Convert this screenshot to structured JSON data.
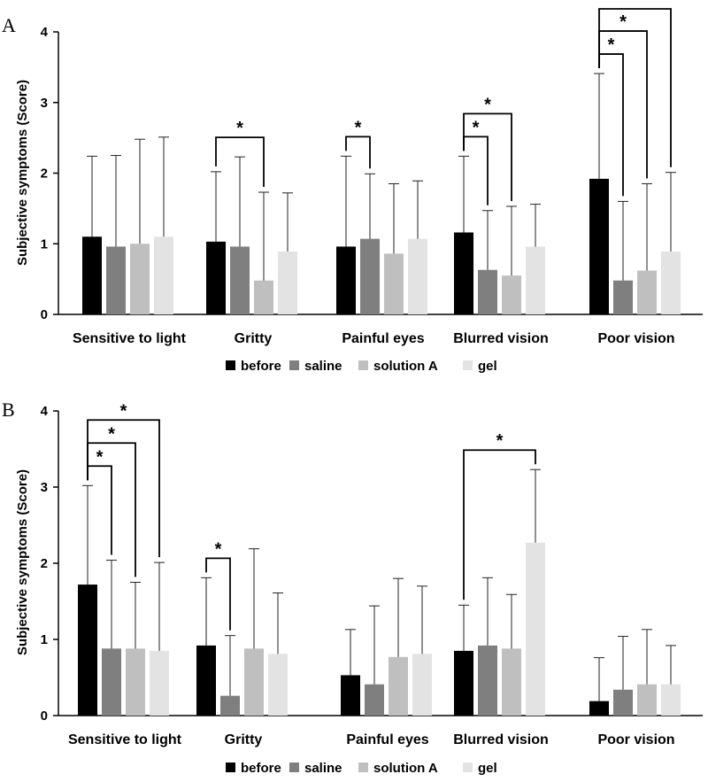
{
  "colors": {
    "before": "#000000",
    "saline": "#7f7f7f",
    "solution A": "#bfbfbf",
    "gel": "#e3e3e3"
  },
  "chart_data": [
    {
      "type": "bar",
      "panel_label": "A",
      "ylabel": "Subjective symptoms (Score)",
      "ylim": [
        0,
        4
      ],
      "yticks": [
        "0",
        "1",
        "2",
        "3",
        "4"
      ],
      "categories": [
        "Sensitive to light",
        "Gritty",
        "Painful eyes",
        "Blurred vision",
        "Poor vision"
      ],
      "legend": [
        "before",
        "saline",
        "solution A",
        "gel"
      ],
      "legend_position": "bottom",
      "grid": false,
      "series": [
        {
          "name": "before",
          "values": [
            1.1,
            1.03,
            0.96,
            1.16,
            1.92
          ],
          "errors": [
            1.14,
            0.99,
            1.28,
            1.08,
            1.49
          ]
        },
        {
          "name": "saline",
          "values": [
            0.96,
            0.96,
            1.07,
            0.63,
            0.48
          ],
          "errors": [
            1.29,
            1.27,
            0.92,
            0.84,
            1.12
          ]
        },
        {
          "name": "solution A",
          "values": [
            1.0,
            0.48,
            0.86,
            0.55,
            0.62
          ],
          "errors": [
            1.48,
            1.25,
            0.99,
            0.98,
            1.23
          ]
        },
        {
          "name": "gel",
          "values": [
            1.1,
            0.89,
            1.07,
            0.96,
            0.89
          ],
          "errors": [
            1.41,
            0.83,
            0.82,
            0.6,
            1.12
          ]
        }
      ],
      "significance": [
        {
          "category": 1,
          "from": 0,
          "to": 2,
          "label": "*",
          "level": 0
        },
        {
          "category": 2,
          "from": 0,
          "to": 1,
          "label": "*",
          "level": 0
        },
        {
          "category": 3,
          "from": 0,
          "to": 1,
          "label": "*",
          "level": 0
        },
        {
          "category": 3,
          "from": 0,
          "to": 2,
          "label": "*",
          "level": 1
        },
        {
          "category": 4,
          "from": 0,
          "to": 1,
          "label": "*",
          "level": 0
        },
        {
          "category": 4,
          "from": 0,
          "to": 2,
          "label": "*",
          "level": 1
        },
        {
          "category": 4,
          "from": 0,
          "to": 3,
          "label": "*",
          "level": 2
        }
      ]
    },
    {
      "type": "bar",
      "panel_label": "B",
      "ylabel": "Subjective symptoms (Score)",
      "ylim": [
        0,
        4
      ],
      "yticks": [
        "0",
        "1",
        "2",
        "3",
        "4"
      ],
      "categories": [
        "Sensitive to light",
        "Gritty",
        "Painful eyes",
        "Blurred vision",
        "Poor vision"
      ],
      "legend": [
        "before",
        "saline",
        "solution A",
        "gel"
      ],
      "legend_position": "bottom",
      "grid": false,
      "series": [
        {
          "name": "before",
          "values": [
            1.72,
            0.92,
            0.53,
            0.85,
            0.19
          ],
          "errors": [
            1.3,
            0.89,
            0.6,
            0.6,
            0.57
          ]
        },
        {
          "name": "saline",
          "values": [
            0.88,
            0.26,
            0.41,
            0.92,
            0.34
          ],
          "errors": [
            1.16,
            0.79,
            1.03,
            0.89,
            0.7
          ]
        },
        {
          "name": "solution A",
          "values": [
            0.88,
            0.88,
            0.77,
            0.88,
            0.41
          ],
          "errors": [
            0.87,
            1.31,
            1.03,
            0.71,
            0.72
          ]
        },
        {
          "name": "gel",
          "values": [
            0.85,
            0.81,
            0.81,
            2.27,
            0.41
          ],
          "errors": [
            1.16,
            0.8,
            0.89,
            0.96,
            0.51
          ]
        }
      ],
      "significance": [
        {
          "category": 0,
          "from": 0,
          "to": 1,
          "label": "*",
          "level": 0
        },
        {
          "category": 0,
          "from": 0,
          "to": 2,
          "label": "*",
          "level": 1
        },
        {
          "category": 0,
          "from": 0,
          "to": 3,
          "label": "*",
          "level": 2
        },
        {
          "category": 1,
          "from": 0,
          "to": 1,
          "label": "*",
          "level": 0
        },
        {
          "category": 3,
          "from": 0,
          "to": 3,
          "label": "*",
          "level": 0
        }
      ]
    }
  ]
}
